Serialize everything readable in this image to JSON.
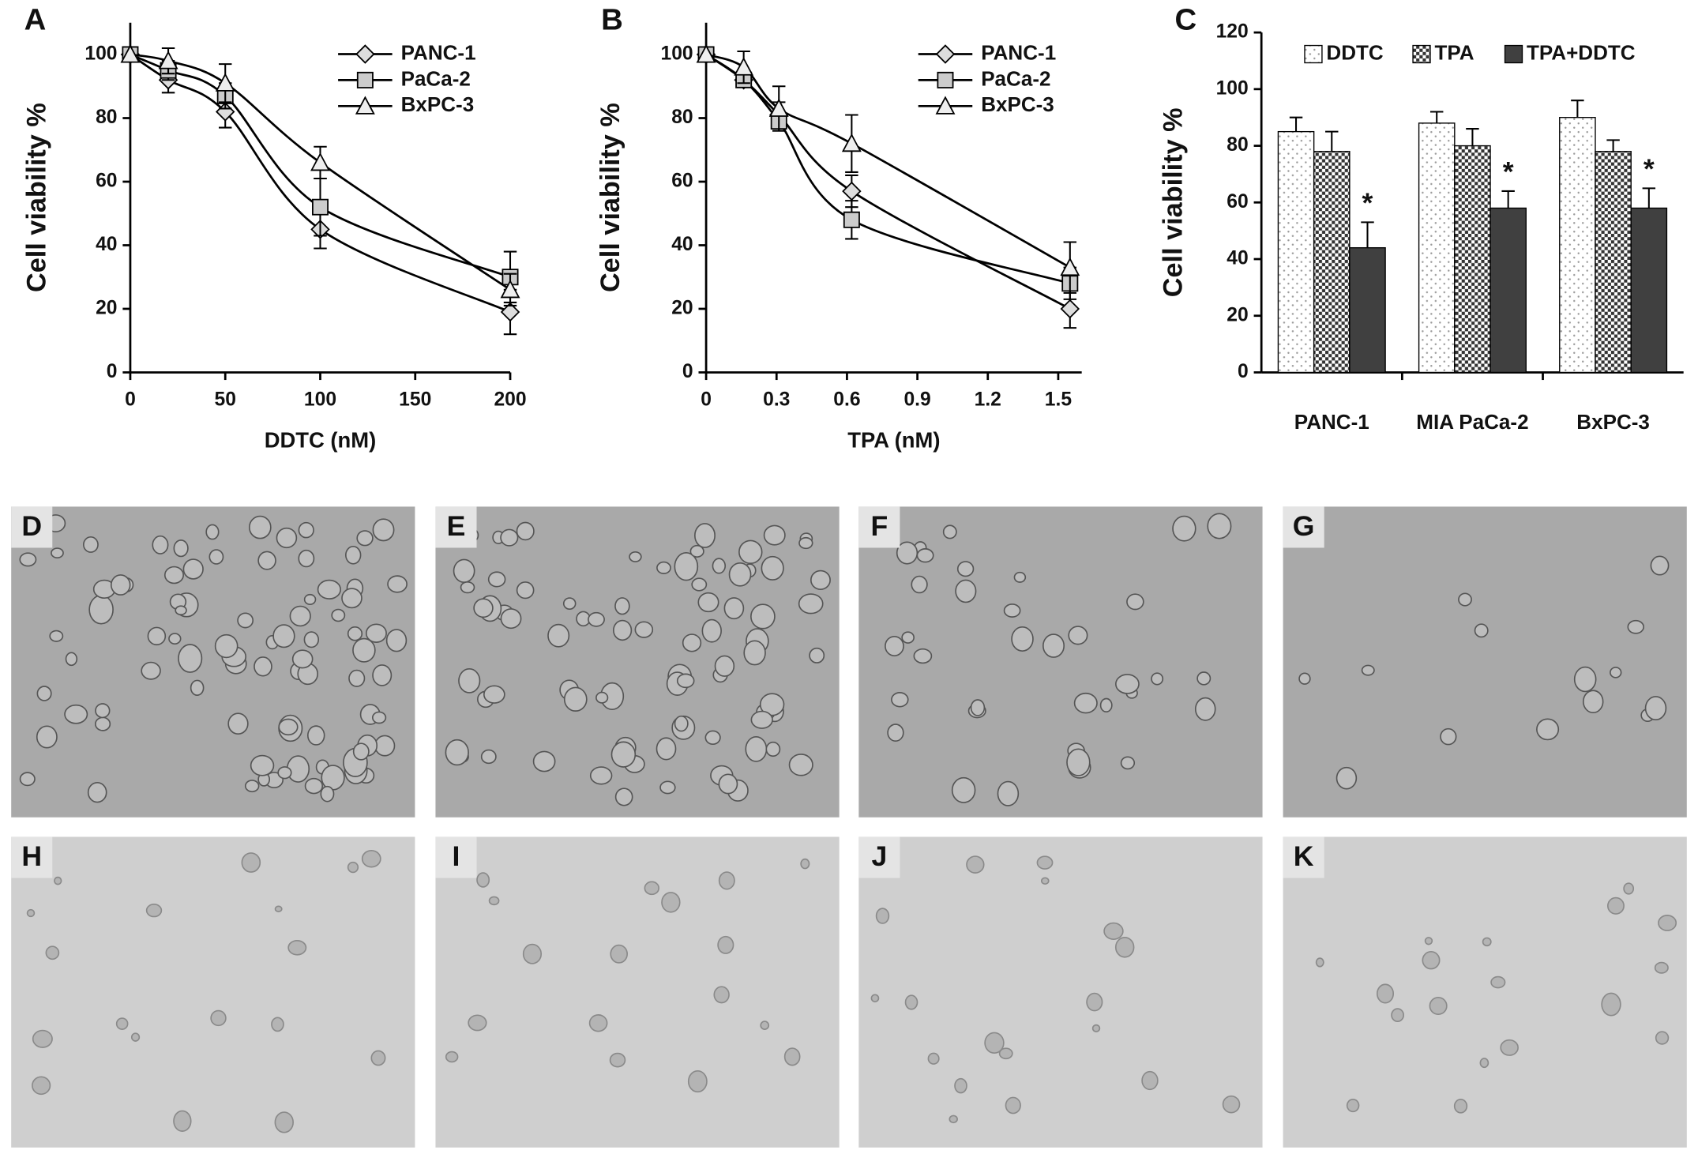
{
  "chart_data": [
    {
      "type": "line",
      "panel_label": "A",
      "x_label": "DDTC (nM)",
      "y_label": "Cell viability %",
      "x": [
        0,
        20,
        50,
        100,
        200
      ],
      "xlim": [
        0,
        200
      ],
      "xticks": [
        0,
        50,
        100,
        150,
        200
      ],
      "ylim": [
        0,
        110
      ],
      "yticks": [
        0,
        20,
        40,
        60,
        80,
        100
      ],
      "series": [
        {
          "name": "PANC-1",
          "color": "#000000",
          "marker": "diamond",
          "marker_fill": "#dddddd",
          "values": [
            100,
            92,
            82,
            45,
            19
          ],
          "errors": [
            0,
            4,
            5,
            6,
            7
          ]
        },
        {
          "name": "PaCa-2",
          "color": "#000000",
          "marker": "square",
          "marker_fill": "#cccccc",
          "values": [
            100,
            95,
            87,
            52,
            30
          ],
          "errors": [
            0,
            3,
            4,
            9,
            8
          ]
        },
        {
          "name": "BxPC-3",
          "color": "#000000",
          "marker": "triangle",
          "marker_fill": "#eeeeee",
          "values": [
            100,
            98,
            91,
            66,
            26
          ],
          "errors": [
            0,
            4,
            6,
            5,
            5
          ]
        }
      ]
    },
    {
      "type": "line",
      "panel_label": "B",
      "x_label": "TPA (nM)",
      "y_label": "Cell viability %",
      "x": [
        0,
        0.16,
        0.31,
        0.62,
        1.55
      ],
      "xlim": [
        0,
        1.6
      ],
      "xticks": [
        0,
        0.3,
        0.6,
        0.9,
        1.2,
        1.5
      ],
      "ylim": [
        0,
        110
      ],
      "yticks": [
        0,
        20,
        40,
        60,
        80,
        100
      ],
      "series": [
        {
          "name": "PANC-1",
          "color": "#000000",
          "marker": "diamond",
          "marker_fill": "#dddddd",
          "values": [
            100,
            92,
            81,
            57,
            20
          ],
          "errors": [
            0,
            2,
            4,
            5,
            6
          ]
        },
        {
          "name": "PaCa-2",
          "color": "#000000",
          "marker": "square",
          "marker_fill": "#cccccc",
          "values": [
            100,
            92,
            79,
            48,
            28
          ],
          "errors": [
            0,
            2,
            3,
            6,
            5
          ]
        },
        {
          "name": "BxPC-3",
          "color": "#000000",
          "marker": "triangle",
          "marker_fill": "#eeeeee",
          "values": [
            100,
            96,
            83,
            72,
            33
          ],
          "errors": [
            0,
            5,
            7,
            9,
            8
          ]
        }
      ]
    },
    {
      "type": "bar",
      "panel_label": "C",
      "y_label": "Cell viability %",
      "categories": [
        "PANC-1",
        "MIA PaCa-2",
        "BxPC-3"
      ],
      "ylim": [
        0,
        120
      ],
      "yticks": [
        0,
        20,
        40,
        60,
        80,
        100,
        120
      ],
      "series": [
        {
          "name": "DDTC",
          "color": "#ffffff",
          "pattern": "dots",
          "values": [
            85,
            88,
            90
          ],
          "errors": [
            5,
            4,
            6
          ]
        },
        {
          "name": "TPA",
          "color": "#808080",
          "pattern": "checker",
          "values": [
            78,
            80,
            78
          ],
          "errors": [
            7,
            6,
            4
          ]
        },
        {
          "name": "TPA+DDTC",
          "color": "#404040",
          "pattern": "solid",
          "values": [
            44,
            58,
            58
          ],
          "errors": [
            9,
            6,
            7
          ],
          "annotations": [
            "*",
            "*",
            "*"
          ]
        }
      ]
    }
  ],
  "micrographs": [
    "D",
    "E",
    "F",
    "G",
    "H",
    "I",
    "J",
    "K"
  ]
}
